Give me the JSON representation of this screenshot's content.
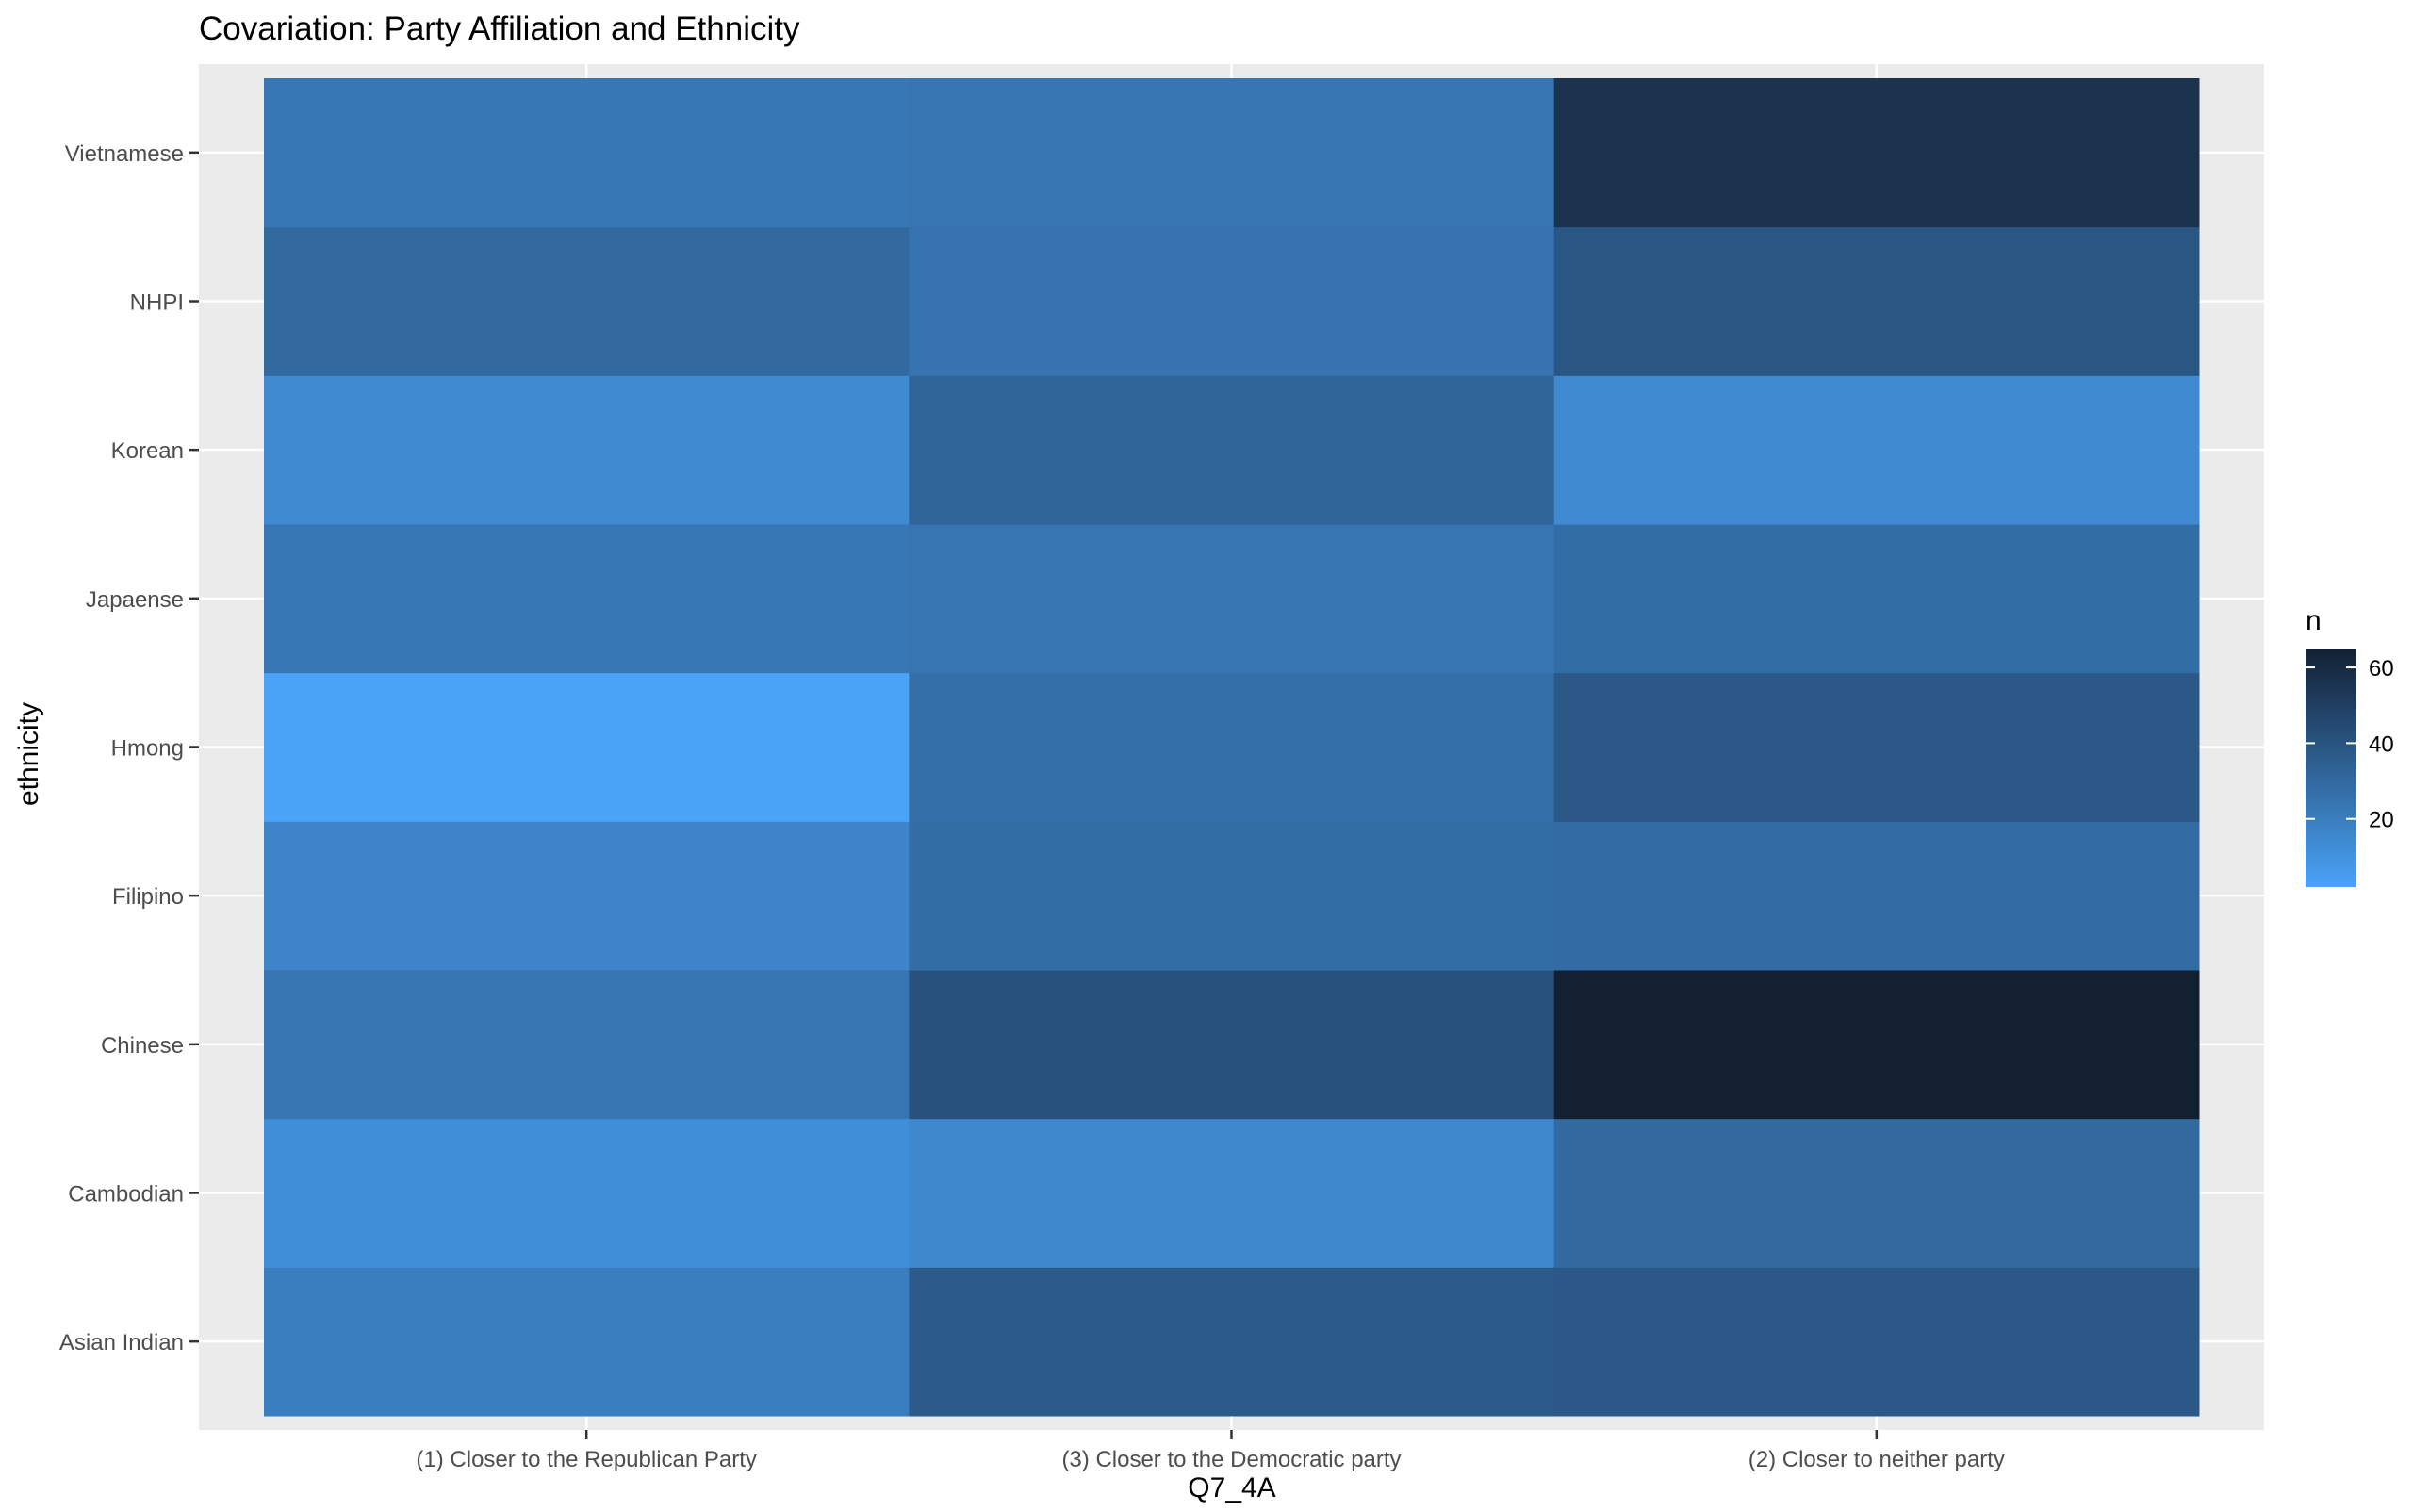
{
  "chart_data": {
    "type": "heatmap",
    "title": "Covariation: Party Affiliation and Ethnicity",
    "xlabel": "Q7_4A",
    "ylabel": "ethnicity",
    "x_categories": [
      "(1) Closer to the Republican Party",
      "(3) Closer to the Democratic party",
      "(2) Closer to neither party"
    ],
    "y_categories": [
      "Asian Indian",
      "Cambodian",
      "Chinese",
      "Filipino",
      "Hmong",
      "Japaense",
      "Korean",
      "NHPI",
      "Vietnamese"
    ],
    "values": [
      [
        20,
        37,
        38
      ],
      [
        12,
        15,
        30
      ],
      [
        24,
        41,
        65
      ],
      [
        17,
        28,
        29
      ],
      [
        2,
        27,
        38
      ],
      [
        23,
        24,
        28
      ],
      [
        14,
        32,
        14
      ],
      [
        30,
        25,
        39
      ],
      [
        23,
        24,
        56
      ]
    ],
    "legend": {
      "title": "n",
      "position": "right",
      "ticks": [
        20,
        40,
        60
      ],
      "min": 2,
      "max": 65,
      "low_color": "#4aa3f7",
      "high_color": "#132032"
    },
    "grid": true,
    "panel_background": "#ebebeb"
  }
}
